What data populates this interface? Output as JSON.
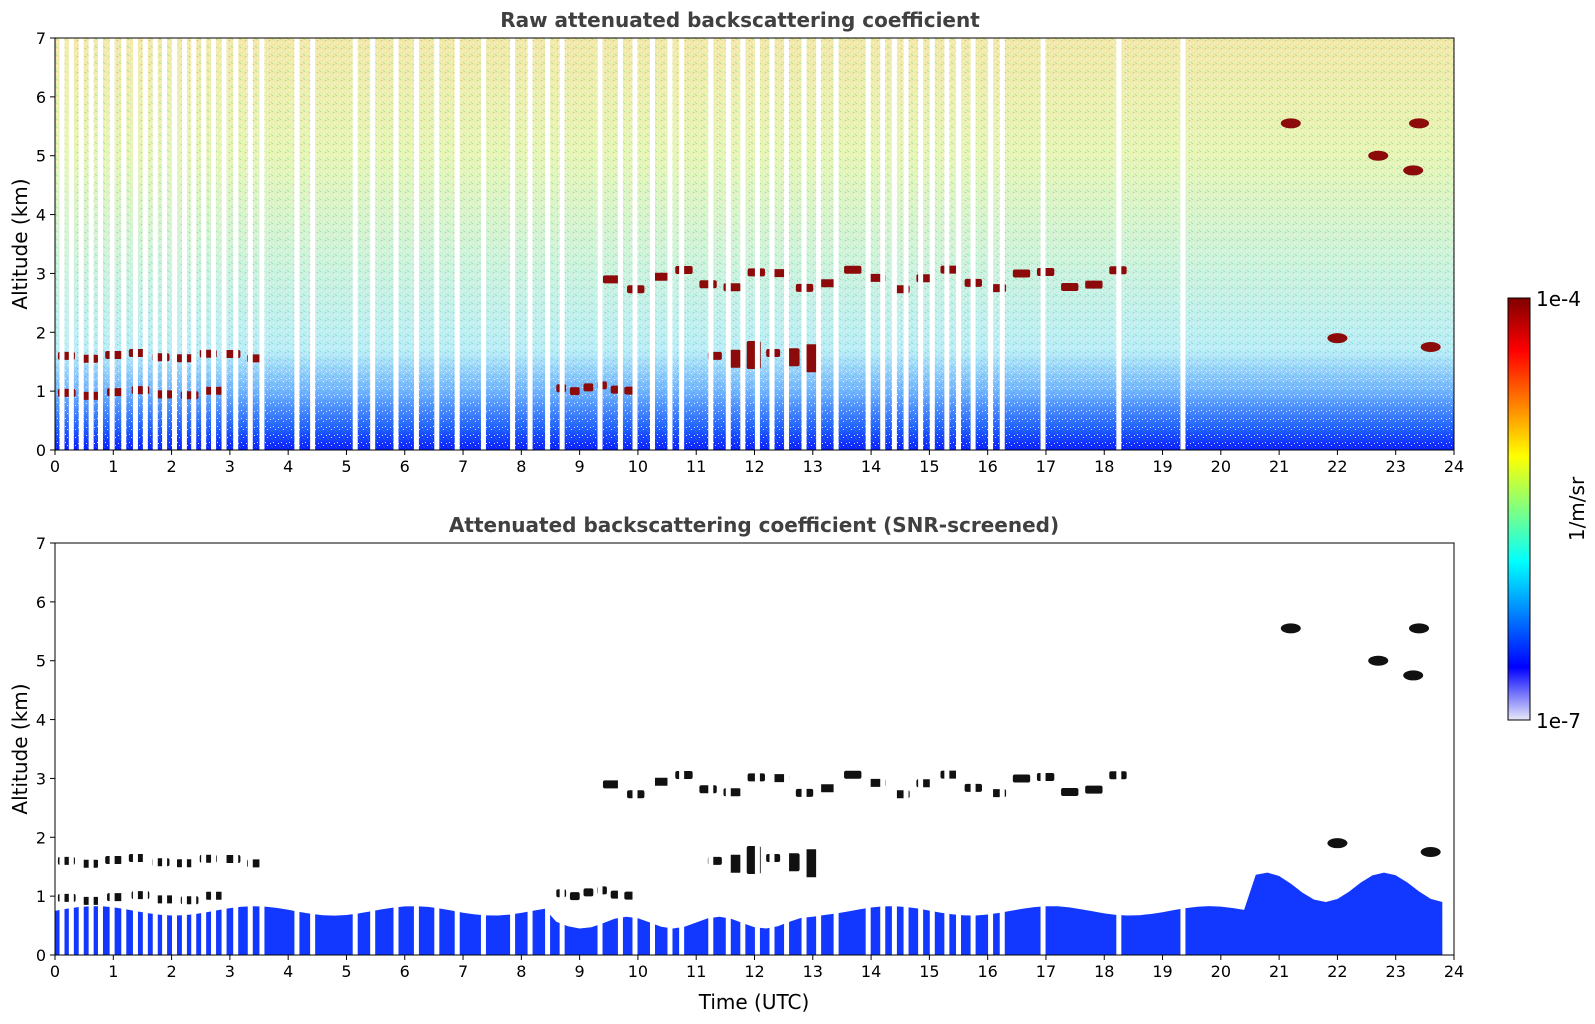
{
  "chart_data": [
    {
      "type": "heatmap",
      "title": "Raw attenuated backscattering coefficient",
      "xlabel": "",
      "ylabel": "Altitude (km)",
      "xlim": [
        0,
        24
      ],
      "ylim": [
        0,
        7
      ],
      "x_ticks": [
        0,
        1,
        2,
        3,
        4,
        5,
        6,
        7,
        8,
        9,
        10,
        11,
        12,
        13,
        14,
        15,
        16,
        17,
        18,
        19,
        20,
        21,
        22,
        23,
        24
      ],
      "y_ticks": [
        0,
        1,
        2,
        3,
        4,
        5,
        6,
        7
      ],
      "data_gaps_utc": [
        0.12,
        0.28,
        0.45,
        0.62,
        0.78,
        0.98,
        1.18,
        1.38,
        1.55,
        1.72,
        1.88,
        2.05,
        2.22,
        2.38,
        2.55,
        2.72,
        2.9,
        3.1,
        3.35,
        3.55,
        4.15,
        4.42,
        5.15,
        5.45,
        5.85,
        6.2,
        6.55,
        6.9,
        7.35,
        7.85,
        8.15,
        8.45,
        8.7,
        9.35,
        9.7,
        9.95,
        10.25,
        10.55,
        10.75,
        11.25,
        11.55,
        11.8,
        12.05,
        12.3,
        12.55,
        12.85,
        13.1,
        13.4,
        13.95,
        14.2,
        14.4,
        14.6,
        14.85,
        15.05,
        15.3,
        15.5,
        15.75,
        16.05,
        16.25,
        16.95,
        18.25,
        19.35
      ],
      "features": [
        {
          "kind": "aerosol_layer",
          "x_range": [
            0.05,
            3.7
          ],
          "altitude_km": 1.6
        },
        {
          "kind": "aerosol_layer",
          "x_range": [
            0.05,
            3.0
          ],
          "altitude_km": 0.97
        },
        {
          "kind": "cloud_layer",
          "x_range": [
            9.4,
            18.5
          ],
          "altitude_km": 2.9
        },
        {
          "kind": "cloud_fragments",
          "x_range": [
            11.2,
            13.2
          ],
          "altitude_km": 1.6
        },
        {
          "kind": "aerosol_layer",
          "x_range": [
            8.6,
            10.0
          ],
          "altitude_km": 1.05
        },
        {
          "kind": "cloud",
          "x": 21.2,
          "altitude_km": 5.55
        },
        {
          "kind": "cloud",
          "x": 22.7,
          "altitude_km": 5.0
        },
        {
          "kind": "cloud",
          "x": 23.4,
          "altitude_km": 5.55
        },
        {
          "kind": "cloud",
          "x": 23.3,
          "altitude_km": 4.75
        },
        {
          "kind": "cloud",
          "x": 22.0,
          "altitude_km": 1.9
        },
        {
          "kind": "cloud",
          "x": 23.6,
          "altitude_km": 1.75
        }
      ]
    },
    {
      "type": "heatmap",
      "title": "Attenuated backscattering coefficient (SNR-screened)",
      "xlabel": "Time (UTC)",
      "ylabel": "Altitude (km)",
      "xlim": [
        0,
        24
      ],
      "ylim": [
        0,
        7
      ],
      "x_ticks": [
        0,
        1,
        2,
        3,
        4,
        5,
        6,
        7,
        8,
        9,
        10,
        11,
        12,
        13,
        14,
        15,
        16,
        17,
        18,
        19,
        20,
        21,
        22,
        23,
        24
      ],
      "y_ticks": [
        0,
        1,
        2,
        3,
        4,
        5,
        6,
        7
      ]
    }
  ],
  "colorbar": {
    "label": "1/m/sr",
    "max_label": "1e-4",
    "min_label": "1e-7",
    "scale": "log",
    "colormap": [
      "#e8e8f8",
      "#0000ff",
      "#0080ff",
      "#00ffff",
      "#80ff80",
      "#ffff00",
      "#ff8000",
      "#ff0000",
      "#800000"
    ]
  }
}
